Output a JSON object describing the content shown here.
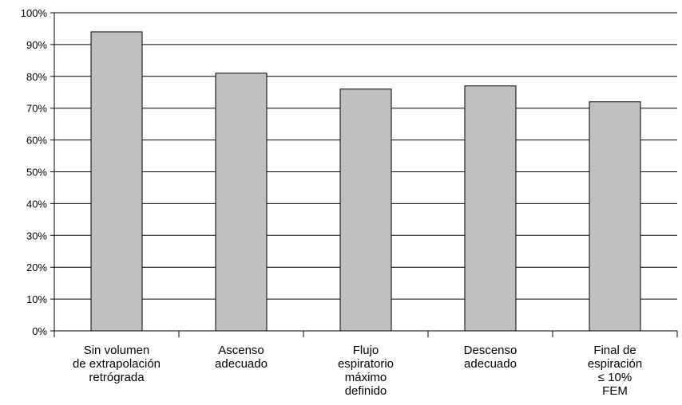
{
  "chart_data": {
    "type": "bar",
    "categories": [
      [
        "Sin volumen",
        "de extrapolación",
        "retrógrada"
      ],
      [
        "Ascenso",
        "adecuado"
      ],
      [
        "Flujo",
        "espiratorio",
        "máximo",
        "definido"
      ],
      [
        "Descenso",
        "adecuado"
      ],
      [
        "Final de",
        "espiración",
        "≤ 10%",
        "FEM"
      ]
    ],
    "values": [
      94,
      81,
      76,
      77,
      72
    ],
    "ylim": [
      0,
      100
    ],
    "yticks": [
      "0%",
      "10%",
      "20%",
      "30%",
      "40%",
      "50%",
      "60%",
      "70%",
      "80%",
      "90%",
      "100%"
    ],
    "grid": true,
    "bar_color": "#c0c0c0",
    "title": "",
    "xlabel": "",
    "ylabel": ""
  }
}
